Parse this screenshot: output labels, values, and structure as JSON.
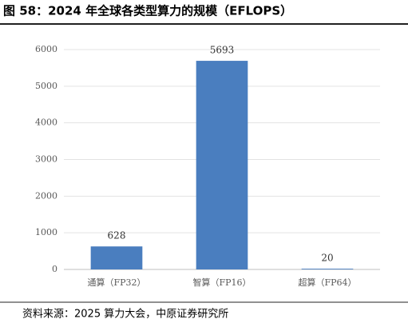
{
  "chart_data": {
    "type": "bar",
    "title": "图 58：2024 年全球各类型算力的规模（EFLOPS）",
    "source": "资料来源：2025 算力大会，中原证券研究所",
    "categories": [
      "通算（FP32）",
      "智算（FP16）",
      "超算（FP64）"
    ],
    "values": [
      628,
      5693,
      20
    ],
    "color": "#4a7ebf",
    "ylim": [
      0,
      6000
    ],
    "yticks": [
      0,
      1000,
      2000,
      3000,
      4000,
      5000,
      6000
    ],
    "grid": true
  }
}
